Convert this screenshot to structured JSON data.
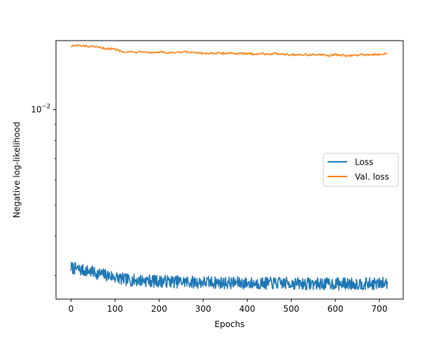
{
  "chart_data": {
    "type": "line",
    "title": "",
    "xlabel": "Epochs",
    "ylabel": "Negative log-likelihood",
    "yscale": "log",
    "xlim": [
      -34,
      754
    ],
    "ylim": [
      0.00253,
      0.0165
    ],
    "xticks": [
      0,
      100,
      200,
      300,
      400,
      500,
      600,
      700
    ],
    "yticks": [
      {
        "value": 0.01,
        "base": "10",
        "exp": "−2"
      }
    ],
    "grid": false,
    "legend": {
      "position": "center-right"
    },
    "series": [
      {
        "name": "Loss",
        "color": "#1f77b4",
        "x": [
          0,
          20,
          40,
          60,
          80,
          100,
          120,
          140,
          160,
          180,
          200,
          220,
          240,
          260,
          280,
          300,
          320,
          340,
          360,
          380,
          400,
          420,
          440,
          460,
          480,
          500,
          520,
          540,
          560,
          580,
          600,
          620,
          640,
          660,
          680,
          700,
          718
        ],
        "y": [
          0.00318,
          0.00313,
          0.0031,
          0.00305,
          0.00301,
          0.00297,
          0.00292,
          0.0029,
          0.0029,
          0.00289,
          0.00288,
          0.00288,
          0.00287,
          0.00287,
          0.00286,
          0.00286,
          0.00286,
          0.00285,
          0.00285,
          0.00285,
          0.00284,
          0.00284,
          0.00284,
          0.00284,
          0.00284,
          0.00284,
          0.00283,
          0.00283,
          0.00283,
          0.00283,
          0.00283,
          0.00283,
          0.00283,
          0.00283,
          0.00283,
          0.00283,
          0.00285
        ]
      },
      {
        "name": "Val. loss",
        "color": "#ff7f0e",
        "x": [
          0,
          20,
          40,
          60,
          80,
          100,
          115,
          130,
          150,
          165,
          180,
          200,
          220,
          240,
          260,
          280,
          300,
          320,
          340,
          360,
          380,
          400,
          420,
          440,
          460,
          480,
          500,
          520,
          540,
          560,
          580,
          600,
          620,
          640,
          660,
          680,
          700,
          718
        ],
        "y": [
          0.0159,
          0.0159,
          0.0158,
          0.0157,
          0.0156,
          0.0155,
          0.0153,
          0.0152,
          0.0152,
          0.0153,
          0.0151,
          0.0152,
          0.0151,
          0.0151,
          0.0152,
          0.0151,
          0.015,
          0.0151,
          0.015,
          0.0151,
          0.015,
          0.015,
          0.015,
          0.015,
          0.015,
          0.015,
          0.0149,
          0.0149,
          0.0149,
          0.0149,
          0.0148,
          0.0149,
          0.0148,
          0.0148,
          0.0149,
          0.0149,
          0.0149,
          0.015
        ]
      }
    ]
  }
}
